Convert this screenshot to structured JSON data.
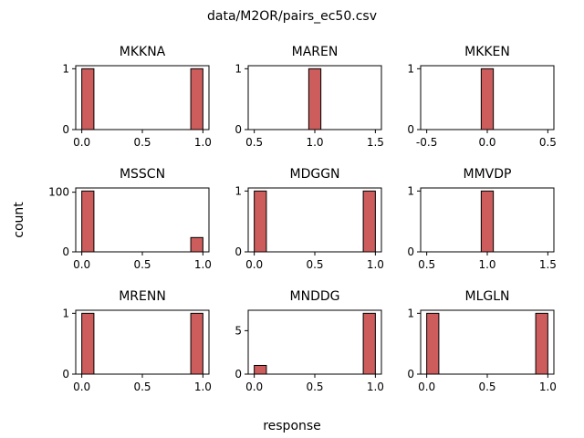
{
  "figure": {
    "suptitle": "data/M2OR/pairs_ec50.csv",
    "supxlabel": "response",
    "supylabel": "count",
    "bar_color": "#cd5c5c",
    "edge_color": "#000000"
  },
  "chart_data": [
    {
      "type": "bar",
      "title": "MKKNA",
      "xlim": [
        -0.05,
        1.05
      ],
      "ylim": [
        0,
        1.05
      ],
      "xticks": [
        0.0,
        0.5,
        1.0
      ],
      "yticks": [
        0,
        1
      ],
      "bars": [
        {
          "x0": 0.0,
          "x1": 0.1,
          "value": 1
        },
        {
          "x0": 0.9,
          "x1": 1.0,
          "value": 1
        }
      ]
    },
    {
      "type": "bar",
      "title": "MAREN",
      "xlim": [
        0.45,
        1.55
      ],
      "ylim": [
        0,
        1.05
      ],
      "xticks": [
        0.5,
        1.0,
        1.5
      ],
      "yticks": [
        0,
        1
      ],
      "bars": [
        {
          "x0": 0.95,
          "x1": 1.05,
          "value": 1
        }
      ]
    },
    {
      "type": "bar",
      "title": "MKKEN",
      "xlim": [
        -0.55,
        0.55
      ],
      "ylim": [
        0,
        1.05
      ],
      "xticks": [
        -0.5,
        0.0,
        0.5
      ],
      "yticks": [
        0,
        1
      ],
      "bars": [
        {
          "x0": -0.05,
          "x1": 0.05,
          "value": 1
        }
      ]
    },
    {
      "type": "bar",
      "title": "MSSCN",
      "xlim": [
        -0.05,
        1.05
      ],
      "ylim": [
        0,
        107.1
      ],
      "xticks": [
        0.0,
        0.5,
        1.0
      ],
      "yticks": [
        0,
        100
      ],
      "bars": [
        {
          "x0": 0.0,
          "x1": 0.1,
          "value": 102
        },
        {
          "x0": 0.9,
          "x1": 1.0,
          "value": 24
        }
      ]
    },
    {
      "type": "bar",
      "title": "MDGGN",
      "xlim": [
        -0.05,
        1.05
      ],
      "ylim": [
        0,
        1.05
      ],
      "xticks": [
        0.0,
        0.5,
        1.0
      ],
      "yticks": [
        0,
        1
      ],
      "bars": [
        {
          "x0": 0.0,
          "x1": 0.1,
          "value": 1
        },
        {
          "x0": 0.9,
          "x1": 1.0,
          "value": 1
        }
      ]
    },
    {
      "type": "bar",
      "title": "MMVDP",
      "xlim": [
        0.45,
        1.55
      ],
      "ylim": [
        0,
        1.05
      ],
      "xticks": [
        0.5,
        1.0,
        1.5
      ],
      "yticks": [
        0,
        1
      ],
      "bars": [
        {
          "x0": 0.95,
          "x1": 1.05,
          "value": 1
        }
      ]
    },
    {
      "type": "bar",
      "title": "MRENN",
      "xlim": [
        -0.05,
        1.05
      ],
      "ylim": [
        0,
        1.05
      ],
      "xticks": [
        0.0,
        0.5,
        1.0
      ],
      "yticks": [
        0,
        1
      ],
      "bars": [
        {
          "x0": 0.0,
          "x1": 0.1,
          "value": 1
        },
        {
          "x0": 0.9,
          "x1": 1.0,
          "value": 1
        }
      ]
    },
    {
      "type": "bar",
      "title": "MNDDG",
      "xlim": [
        -0.05,
        1.05
      ],
      "ylim": [
        0,
        7.35
      ],
      "xticks": [
        0.0,
        0.5,
        1.0
      ],
      "yticks": [
        0,
        5
      ],
      "bars": [
        {
          "x0": 0.0,
          "x1": 0.1,
          "value": 1
        },
        {
          "x0": 0.9,
          "x1": 1.0,
          "value": 7
        }
      ]
    },
    {
      "type": "bar",
      "title": "MLGLN",
      "xlim": [
        -0.05,
        1.05
      ],
      "ylim": [
        0,
        1.05
      ],
      "xticks": [
        0.0,
        0.5,
        1.0
      ],
      "yticks": [
        0,
        1
      ],
      "bars": [
        {
          "x0": 0.0,
          "x1": 0.1,
          "value": 1
        },
        {
          "x0": 0.9,
          "x1": 1.0,
          "value": 1
        }
      ]
    }
  ]
}
